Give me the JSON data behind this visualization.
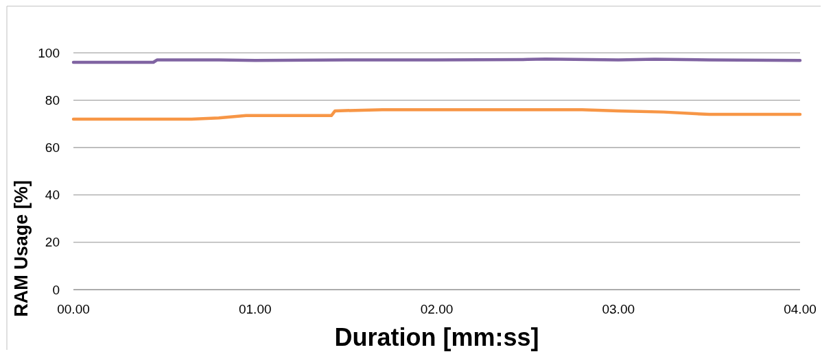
{
  "chart_data": {
    "type": "line",
    "xlabel": "Duration [mm:ss]",
    "ylabel": "RAM Usage [%]",
    "xlim": [
      0,
      4
    ],
    "xticks": [
      {
        "value": 0,
        "label": "00.00"
      },
      {
        "value": 1,
        "label": "01.00"
      },
      {
        "value": 2,
        "label": "02.00"
      },
      {
        "value": 3,
        "label": "03.00"
      },
      {
        "value": 4,
        "label": "04.00"
      }
    ],
    "ylim": [
      0,
      120
    ],
    "yticks": [
      0,
      20,
      40,
      60,
      80,
      100
    ],
    "grid": "y",
    "marker": "none",
    "line_style": "solid",
    "series": [
      {
        "color": "#8064a2",
        "x": [
          0,
          0.44,
          0.46,
          0.8,
          1.0,
          1.5,
          2.0,
          2.5,
          2.6,
          3.0,
          3.2,
          3.5,
          4.0
        ],
        "values": [
          96,
          96,
          97,
          97,
          96.8,
          97,
          97,
          97.2,
          97.4,
          97,
          97.3,
          97,
          96.8
        ]
      },
      {
        "color": "#f79646",
        "x": [
          0,
          0.65,
          0.8,
          0.95,
          1.05,
          1.42,
          1.44,
          1.7,
          2.0,
          2.5,
          2.8,
          3.0,
          3.25,
          3.5,
          3.6,
          4.0
        ],
        "values": [
          72,
          72,
          72.5,
          73.5,
          73.5,
          73.5,
          75.5,
          76,
          76,
          76,
          76,
          75.5,
          75,
          74,
          74,
          74
        ]
      }
    ]
  }
}
